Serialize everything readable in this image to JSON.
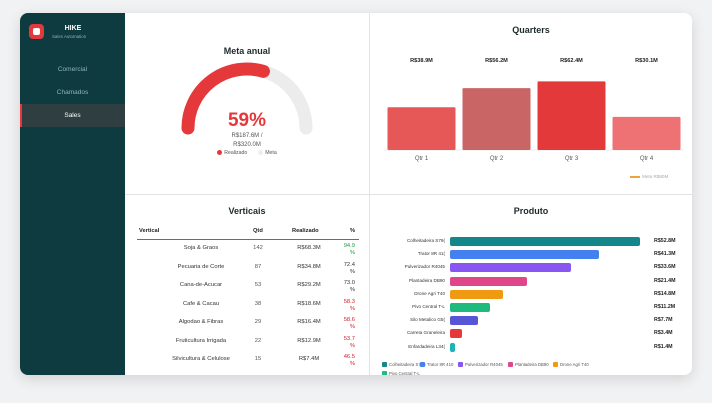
{
  "app": {
    "title": "HIKE",
    "subtitle": "Sales Automation"
  },
  "sidebar": {
    "items": [
      {
        "label": "Comercial",
        "active": false
      },
      {
        "label": "Chamados",
        "active": false
      },
      {
        "label": "Sales",
        "active": true
      }
    ]
  },
  "meta_anual": {
    "title": "Meta anual",
    "percent": "59%",
    "realizado": "R$187.6M /",
    "meta": "R$320.0M",
    "progress_fraction": 0.59,
    "legend": [
      "Realizado",
      "Meta"
    ],
    "colors": {
      "realizado": "#e5383b",
      "meta": "#eeeeee"
    }
  },
  "quarters": {
    "title": "Quarters",
    "legend": "Meta R$80M",
    "chart_data": {
      "type": "bar",
      "categories": [
        "Qtr 1",
        "Qtr 2",
        "Qtr 3",
        "Qtr 4"
      ],
      "values": [
        38.9,
        56.2,
        62.4,
        30.1
      ],
      "labels": [
        "R$38.9M",
        "R$56.2M",
        "R$62.4M",
        "R$30.1M"
      ],
      "colors": [
        "#e55857",
        "#c96565",
        "#e3393b",
        "#ee7274"
      ],
      "ylim": [
        0,
        80
      ]
    }
  },
  "verticais": {
    "title": "Verticais",
    "headers": [
      "Vertical",
      "Qtd",
      "Realizado",
      "%"
    ],
    "rows": [
      {
        "vertical": "Soja & Graos",
        "qtd": "142",
        "realizado": "R$68.3M",
        "pct": "94.9",
        "status": "pos"
      },
      {
        "vertical": "Pecuaria de Corte",
        "qtd": "87",
        "realizado": "R$34.8M",
        "pct": "72.4",
        "status": "neutral"
      },
      {
        "vertical": "Cana-de-Acucar",
        "qtd": "53",
        "realizado": "R$29.2M",
        "pct": "73.0",
        "status": "neutral"
      },
      {
        "vertical": "Cafe & Cacau",
        "qtd": "38",
        "realizado": "R$18.6M",
        "pct": "58.3",
        "status": "neg"
      },
      {
        "vertical": "Algodao & Fibras",
        "qtd": "29",
        "realizado": "R$16.4M",
        "pct": "58.6",
        "status": "neg"
      },
      {
        "vertical": "Fruticultura Irrigada",
        "qtd": "22",
        "realizado": "R$12.9M",
        "pct": "53.7",
        "status": "neg"
      },
      {
        "vertical": "Silvicultura & Celulose",
        "qtd": "15",
        "realizado": "R$7.4M",
        "pct": "46.5",
        "status": "neg"
      }
    ]
  },
  "produto": {
    "title": "Produto",
    "chart_data": {
      "type": "bar",
      "orientation": "horizontal",
      "categories": [
        "Colheitadeira S79",
        "Trator 8R 410",
        "Pulverizador R4045",
        "Plantadeira DB90",
        "Drone Agri T40",
        "Pivo Central T-L",
        "Silo Metalico G5",
        "Carreta Graneleira",
        "Enfardadeira L34"
      ],
      "axis_labels": [
        "Colheitadeira S79(",
        "Trator 8R 41(",
        "Pulverizador R4045",
        "Plantadeira DB90",
        "Drone Agri T40",
        "Pivo Central T-L",
        "Silo Metalico G5(",
        "Carreta Graneleira",
        "Enfardadeira L34("
      ],
      "values": [
        52.8,
        41.3,
        33.6,
        21.4,
        14.8,
        11.2,
        7.7,
        3.4,
        1.4
      ],
      "labels": [
        "R$52.8M",
        "R$41.3M",
        "R$33.6M",
        "R$21.4M",
        "R$14.8M",
        "R$11.2M",
        "R$7.7M",
        "R$3.4M",
        "R$1.4M"
      ],
      "colors": [
        "#14878a",
        "#4480f0",
        "#8856f0",
        "#e0478b",
        "#f09a12",
        "#1eba7e",
        "#5656d6",
        "#e5383b",
        "#1bb3b8"
      ],
      "xlim": [
        0,
        52.8
      ]
    },
    "legend": [
      {
        "label": "Colheitadeira S790",
        "color": "#14878a"
      },
      {
        "label": "Trator 8R 410",
        "color": "#4480f0"
      },
      {
        "label": "Pulverizador R4045",
        "color": "#8856f0"
      },
      {
        "label": "Plantadeira DB90",
        "color": "#e0478b"
      },
      {
        "label": "Drone Agri T40",
        "color": "#f09a12"
      },
      {
        "label": "Pivo Central T-L",
        "color": "#1eba7e"
      }
    ]
  }
}
